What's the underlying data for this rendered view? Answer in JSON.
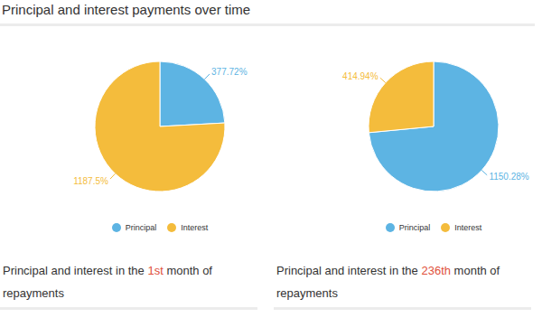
{
  "title": "Principal and interest payments over time",
  "chart_data": [
    {
      "type": "pie",
      "categories": [
        "Principal",
        "Interest"
      ],
      "values": [
        377.72,
        1187.5
      ],
      "value_labels": [
        "377.72%",
        "1187.5%"
      ],
      "colors": [
        "#5db4e3",
        "#f4bc3c"
      ],
      "data_labels": true,
      "legend": "bottom",
      "caption": [
        "Principal and interest in the ",
        "1st",
        " month of repayments"
      ]
    },
    {
      "type": "pie",
      "categories": [
        "Principal",
        "Interest"
      ],
      "values": [
        1150.28,
        414.94
      ],
      "value_labels": [
        "1150.28%",
        "414.94%"
      ],
      "colors": [
        "#5db4e3",
        "#f4bc3c"
      ],
      "data_labels": true,
      "legend": "bottom",
      "caption": [
        "Principal and interest in the ",
        "236th",
        " month of repayments"
      ]
    }
  ]
}
